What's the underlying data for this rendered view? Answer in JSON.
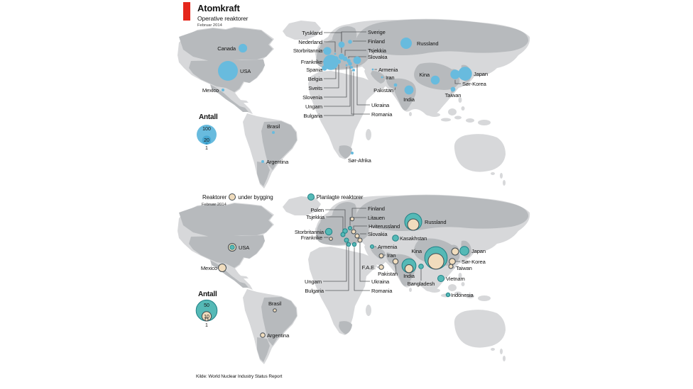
{
  "header": {
    "title": "Atomkraft",
    "accent_color": "#e5271c"
  },
  "source": "Kilde: World Nuclear Industry Status Report",
  "colors": {
    "blue": "#68bbde",
    "blue_mid": "#49a9d3",
    "blue_dark": "#2f96c6",
    "teal": "#55b9b6",
    "teal_stroke": "#1f8186",
    "beige": "#f0dcbd",
    "beige_stroke": "#41494f",
    "land": "#d7d8da",
    "land_dark": "#b7babd",
    "leader": "#55585a",
    "accent": "#e5271c",
    "text": "#141414"
  },
  "chart_data": [
    {
      "type": "bubble-map",
      "title": "Operative reaktorer",
      "date": "Februar 2014",
      "legend": {
        "title": "Antall",
        "labels": [
          "100",
          "20",
          "1"
        ],
        "values": [
          100,
          20,
          1
        ]
      },
      "points": [
        {
          "country": "USA",
          "value": 100
        },
        {
          "country": "Frankrike",
          "value": 58
        },
        {
          "country": "Japan",
          "value": 48
        },
        {
          "country": "Russland",
          "value": 33
        },
        {
          "country": "Sør-Korea",
          "value": 23
        },
        {
          "country": "India",
          "value": 21
        },
        {
          "country": "Kina",
          "value": 20
        },
        {
          "country": "Canada",
          "value": 19
        },
        {
          "country": "Storbritannia",
          "value": 16
        },
        {
          "country": "Ukraina",
          "value": 15
        },
        {
          "country": "Sverige",
          "value": 10
        },
        {
          "country": "Tyskland",
          "value": 9
        },
        {
          "country": "Belgia",
          "value": 7
        },
        {
          "country": "Spania",
          "value": 7
        },
        {
          "country": "Tsjekkia",
          "value": 6
        },
        {
          "country": "Taiwan",
          "value": 6
        },
        {
          "country": "Sveits",
          "value": 5
        },
        {
          "country": "Finland",
          "value": 4
        },
        {
          "country": "Slovakia",
          "value": 4
        },
        {
          "country": "Ungarn",
          "value": 4
        },
        {
          "country": "Pakistan",
          "value": 3
        },
        {
          "country": "Argentina",
          "value": 2
        },
        {
          "country": "Brasil",
          "value": 2
        },
        {
          "country": "Bulgaria",
          "value": 2
        },
        {
          "country": "Mexico",
          "value": 2
        },
        {
          "country": "Romania",
          "value": 2
        },
        {
          "country": "Sør-Afrika",
          "value": 2
        },
        {
          "country": "Armenia",
          "value": 1
        },
        {
          "country": "Iran",
          "value": 1
        },
        {
          "country": "Nederland",
          "value": 1
        },
        {
          "country": "Slovenia",
          "value": 1
        }
      ]
    },
    {
      "type": "bubble-map",
      "date": "Februar 2014",
      "legend_line": {
        "reaktorer": "Reaktorer",
        "under": "under bygging",
        "planlagte": "Planlagte reaktorer"
      },
      "legend": {
        "title": "Antall",
        "labels": [
          "50",
          "10",
          "1"
        ],
        "values": [
          50,
          10,
          1
        ]
      },
      "points": [
        {
          "country": "Kina",
          "planned": 57,
          "under_construction": 28
        },
        {
          "country": "Russland",
          "planned": 31,
          "under_construction": 10
        },
        {
          "country": "India",
          "planned": 22,
          "under_construction": 6
        },
        {
          "country": "USA",
          "planned": 2,
          "under_construction": 5
        },
        {
          "country": "Japan",
          "planned": 9,
          "under_construction": 3
        },
        {
          "country": "Sør-Korea",
          "under_construction": 5
        },
        {
          "country": "Vietnam",
          "planned": 4
        },
        {
          "country": "Storbritannia",
          "planned": 4
        },
        {
          "country": "Kasakhstan",
          "planned": 3
        },
        {
          "country": "Pakistan",
          "under_construction": 2
        },
        {
          "country": "F.A.E.",
          "under_construction": 2
        },
        {
          "country": "Taiwan",
          "under_construction": 2
        },
        {
          "country": "Hviterussland",
          "under_construction": 2
        },
        {
          "country": "Slovakia",
          "under_construction": 2
        },
        {
          "country": "Ukraina",
          "under_construction": 2
        },
        {
          "country": "Mexico",
          "under_construction": 2
        },
        {
          "country": "Polen",
          "planned": 2
        },
        {
          "country": "Tsjekkia",
          "planned": 2
        },
        {
          "country": "Ungarn",
          "planned": 2
        },
        {
          "country": "Bulgaria",
          "planned": 2
        },
        {
          "country": "Romania",
          "planned": 2
        },
        {
          "country": "Bangladesh",
          "planned": 2
        },
        {
          "country": "Indonesia",
          "planned": 2
        },
        {
          "country": "Litauen",
          "planned": 1
        },
        {
          "country": "Armenia",
          "planned": 1
        },
        {
          "country": "Finland",
          "under_construction": 1
        },
        {
          "country": "Frankrike",
          "under_construction": 1
        },
        {
          "country": "Brasil",
          "under_construction": 1
        },
        {
          "country": "Argentina",
          "under_construction": 1
        },
        {
          "country": "Iran",
          "under_construction": 1
        }
      ]
    }
  ]
}
